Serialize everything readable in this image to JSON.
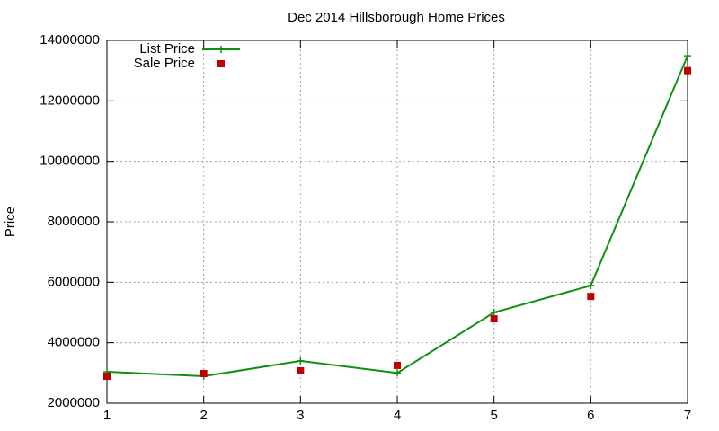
{
  "chart_data": {
    "type": "line",
    "title": "Dec 2014 Hillsborough Home Prices",
    "y_label": "Price",
    "x": [
      1,
      2,
      3,
      4,
      5,
      6,
      7
    ],
    "series": [
      {
        "name": "List Price",
        "color": "#109010",
        "style": "linespoints",
        "marker": "plus",
        "values": [
          3040000,
          2890000,
          3400000,
          3000000,
          5000000,
          5890000,
          13490000
        ]
      },
      {
        "name": "Sale Price",
        "color": "#c00000",
        "style": "points",
        "marker": "square",
        "values": [
          2890000,
          2980000,
          3070000,
          3250000,
          4790000,
          5530000,
          13000000
        ]
      }
    ],
    "xlim": [
      1,
      7
    ],
    "xticks": [
      1,
      2,
      3,
      4,
      5,
      6,
      7
    ],
    "ylim": [
      2000000,
      14000000
    ],
    "yticks": [
      2000000,
      4000000,
      6000000,
      8000000,
      10000000,
      12000000,
      14000000
    ],
    "grid": true,
    "legend": "top-left"
  }
}
